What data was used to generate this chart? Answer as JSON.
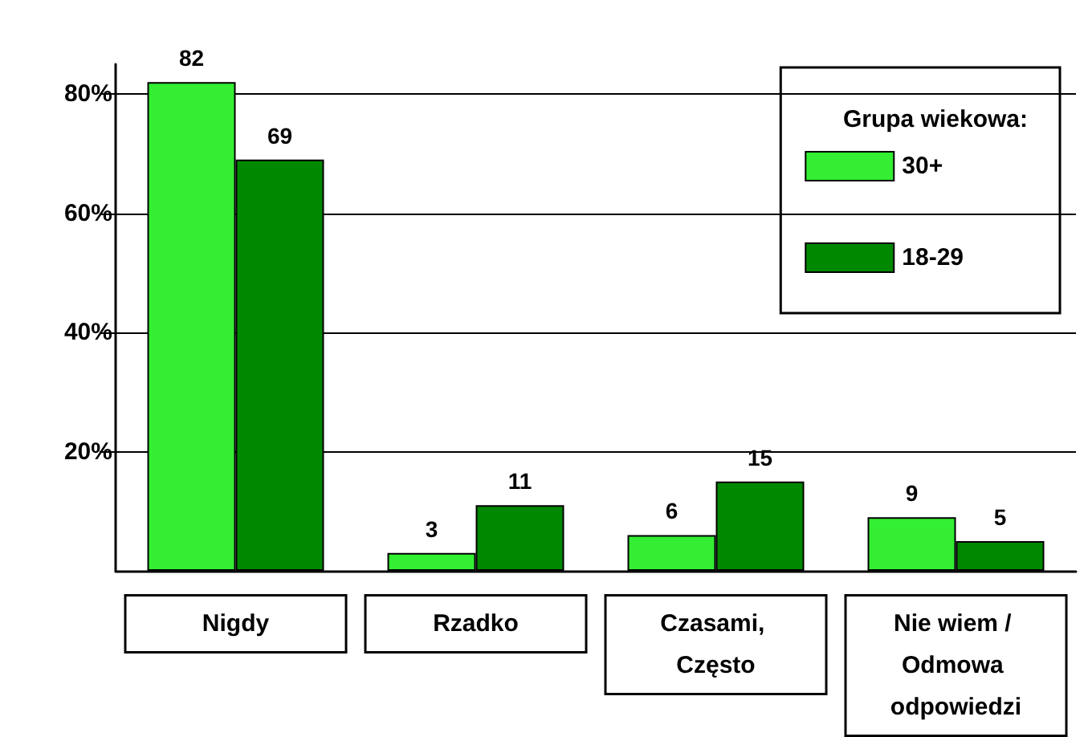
{
  "chart_data": {
    "type": "bar",
    "categories": [
      "Nigdy",
      "Rzadko",
      "Czasami, Często",
      "Nie wiem / Odmowa odpowiedzi"
    ],
    "series": [
      {
        "name": "30+",
        "color": "#33ee33",
        "values": [
          82,
          3,
          6,
          9
        ]
      },
      {
        "name": "18-29",
        "color": "#008800",
        "values": [
          69,
          11,
          15,
          5
        ]
      }
    ],
    "ylim": [
      0,
      85
    ],
    "yticks": [
      {
        "value": 20,
        "label": "20%"
      },
      {
        "value": 40,
        "label": "40%"
      },
      {
        "value": 60,
        "label": "60%"
      },
      {
        "value": 80,
        "label": "80%"
      }
    ],
    "grid": "y",
    "legend": "top right",
    "legend_title": "Grupa wiekowa:",
    "data_labels": true
  }
}
